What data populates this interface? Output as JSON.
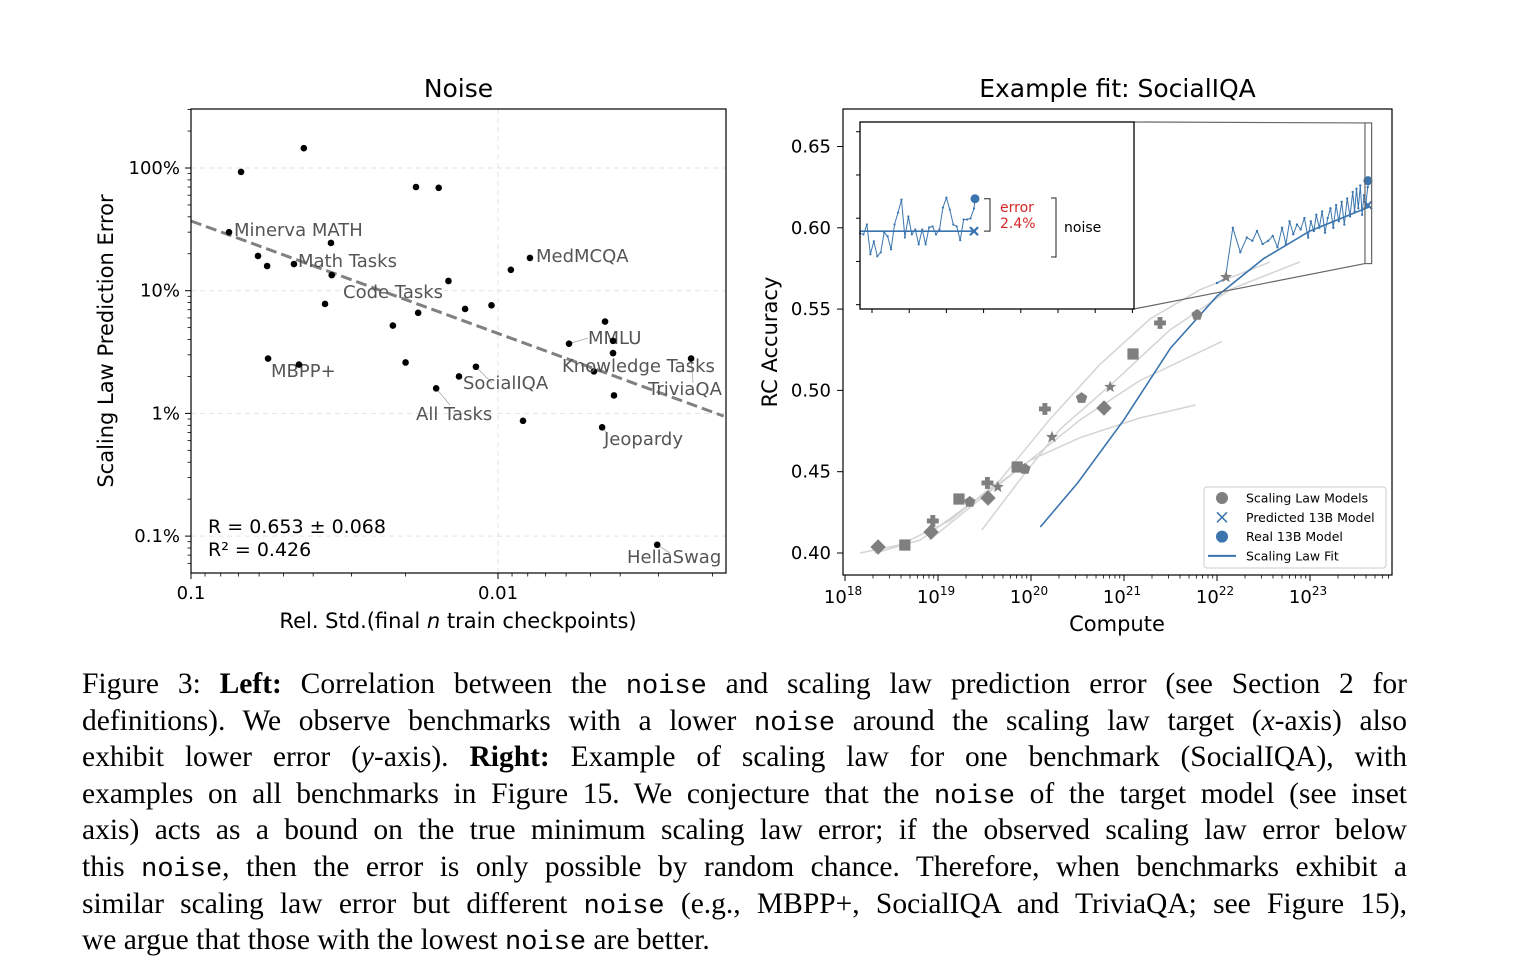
{
  "chart_data": [
    {
      "type": "scatter",
      "title": "Noise",
      "xlabel": {
        "prefix": "Rel. Std.(final ",
        "var": "n",
        "suffix": " train checkpoints)"
      },
      "ylabel": "Scaling Law Prediction Error",
      "x_scale": "log",
      "x_reversed": true,
      "xlim": [
        0.1,
        0.00184
      ],
      "y_scale": "log",
      "y_unit": "percent",
      "ylim": [
        0.05,
        300
      ],
      "grid": true,
      "xticks": [
        {
          "value": 0.1,
          "label": "0.1"
        },
        {
          "value": 0.01,
          "label": "0.01"
        }
      ],
      "yticks": [
        {
          "value": 100,
          "label": "100%"
        },
        {
          "value": 10,
          "label": "10%"
        },
        {
          "value": 1,
          "label": "1%"
        },
        {
          "value": 0.1,
          "label": "0.1%"
        }
      ],
      "points": [
        {
          "x": 0.0429,
          "y": 145
        },
        {
          "x": 0.0687,
          "y": 93
        },
        {
          "x": 0.0185,
          "y": 70
        },
        {
          "x": 0.0156,
          "y": 69
        },
        {
          "x": 0.0752,
          "y": 30,
          "label": "Minerva MATH"
        },
        {
          "x": 0.035,
          "y": 24.5
        },
        {
          "x": 0.0605,
          "y": 19.2
        },
        {
          "x": 0.0565,
          "y": 15.9
        },
        {
          "x": 0.0462,
          "y": 16.5,
          "label": "Math Tasks"
        },
        {
          "x": 0.0348,
          "y": 13.4,
          "label": "Code Tasks"
        },
        {
          "x": 0.0145,
          "y": 12.0
        },
        {
          "x": 0.00908,
          "y": 14.8
        },
        {
          "x": 0.00787,
          "y": 18.5,
          "label": "MedMCQA"
        },
        {
          "x": 0.0366,
          "y": 7.8
        },
        {
          "x": 0.0128,
          "y": 7.1
        },
        {
          "x": 0.0105,
          "y": 7.6
        },
        {
          "x": 0.022,
          "y": 5.2
        },
        {
          "x": 0.0182,
          "y": 6.6
        },
        {
          "x": 0.00448,
          "y": 5.6
        },
        {
          "x": 0.00587,
          "y": 3.7,
          "label": "MMLU"
        },
        {
          "x": 0.00422,
          "y": 3.9
        },
        {
          "x": 0.00422,
          "y": 3.1
        },
        {
          "x": 0.00235,
          "y": 2.8,
          "label": "TriviaQA"
        },
        {
          "x": 0.00487,
          "y": 2.2,
          "label": "Knowledge Tasks"
        },
        {
          "x": 0.00419,
          "y": 1.4
        },
        {
          "x": 0.0561,
          "y": 2.8,
          "label": "MBPP+"
        },
        {
          "x": 0.0445,
          "y": 2.5
        },
        {
          "x": 0.02,
          "y": 2.6
        },
        {
          "x": 0.0118,
          "y": 2.4,
          "label": "SocialIQA"
        },
        {
          "x": 0.0134,
          "y": 2.0
        },
        {
          "x": 0.0159,
          "y": 1.6,
          "label": "All Tasks"
        },
        {
          "x": 0.00829,
          "y": 0.87
        },
        {
          "x": 0.00458,
          "y": 0.77,
          "label": "Jeopardy"
        },
        {
          "x": 0.00303,
          "y": 0.085,
          "label": "HellaSwag"
        }
      ],
      "trend": {
        "style": "dashed",
        "x": [
          0.1,
          0.00184
        ],
        "y": [
          37,
          0.95
        ]
      },
      "stats": [
        "R = 0.653 ± 0.068",
        "R² = 0.426"
      ],
      "colors": {
        "points": "#000000",
        "trend": "#808080",
        "labels": "#555555",
        "grid": "#e3e3e3"
      }
    },
    {
      "type": "line",
      "title": "Example fit: SocialIQA",
      "xlabel": "Compute",
      "ylabel": "RC Accuracy",
      "x_scale": "log",
      "xlim": [
        9.5e+17,
        7.6e+23
      ],
      "ylim": [
        0.3865,
        0.673
      ],
      "xticks": [
        {
          "base": "10",
          "exp": "18"
        },
        {
          "base": "10",
          "exp": "19"
        },
        {
          "base": "10",
          "exp": "20"
        },
        {
          "base": "10",
          "exp": "21"
        },
        {
          "base": "10",
          "exp": "22"
        },
        {
          "base": "10",
          "exp": "23"
        }
      ],
      "yticks": [
        {
          "value": 0.4,
          "label": "0.40"
        },
        {
          "value": 0.45,
          "label": "0.45"
        },
        {
          "value": 0.5,
          "label": "0.50"
        },
        {
          "value": 0.55,
          "label": "0.55"
        },
        {
          "value": 0.6,
          "label": "0.60"
        },
        {
          "value": 0.65,
          "label": "0.65"
        }
      ],
      "scaling_law_models": [
        {
          "compute": 2.27e+18,
          "acc": 0.4037,
          "marker": "diamond"
        },
        {
          "compute": 4.4e+18,
          "acc": 0.4049,
          "marker": "square"
        },
        {
          "compute": 8.8e+18,
          "acc": 0.4197,
          "marker": "plus"
        },
        {
          "compute": 8.4e+18,
          "acc": 0.4129,
          "marker": "diamond"
        },
        {
          "compute": 1.68e+19,
          "acc": 0.4332,
          "marker": "square"
        },
        {
          "compute": 2.2e+19,
          "acc": 0.4314,
          "marker": "pentagon"
        },
        {
          "compute": 3.4e+19,
          "acc": 0.4431,
          "marker": "plus"
        },
        {
          "compute": 4.4e+19,
          "acc": 0.4406,
          "marker": "star"
        },
        {
          "compute": 3.45e+19,
          "acc": 0.4338,
          "marker": "diamond"
        },
        {
          "compute": 7.1e+19,
          "acc": 0.4529,
          "marker": "square"
        },
        {
          "compute": 8.6e+19,
          "acc": 0.4517,
          "marker": "pentagon"
        },
        {
          "compute": 1.41e+20,
          "acc": 0.4886,
          "marker": "plus"
        },
        {
          "compute": 1.68e+20,
          "acc": 0.4713,
          "marker": "star"
        },
        {
          "compute": 3.5e+20,
          "acc": 0.4953,
          "marker": "pentagon"
        },
        {
          "compute": 7.1e+20,
          "acc": 0.5021,
          "marker": "star"
        },
        {
          "compute": 6.1e+20,
          "acc": 0.4892,
          "marker": "diamond"
        },
        {
          "compute": 1.25e+21,
          "acc": 0.5224,
          "marker": "square"
        },
        {
          "compute": 2.44e+21,
          "acc": 0.5415,
          "marker": "plus"
        },
        {
          "compute": 6.1e+21,
          "acc": 0.5464,
          "marker": "pentagon"
        },
        {
          "compute": 1.25e+22,
          "acc": 0.5697,
          "marker": "star"
        }
      ],
      "model_fit_curves": [
        [
          [
            1.45e+18,
            0.4
          ],
          [
            3.89e+18,
            0.405
          ],
          [
            1.35e+19,
            0.42
          ],
          [
            4.68e+19,
            0.445
          ],
          [
            1.58e+20,
            0.482
          ],
          [
            5.5e+20,
            0.516
          ],
          [
            1.91e+21,
            0.544
          ],
          [
            6.61e+21,
            0.562
          ],
          [
            3.72e+22,
            0.579
          ]
        ],
        [
          [
            2.09e+18,
            0.4
          ],
          [
            6.46e+18,
            0.408
          ],
          [
            2.19e+19,
            0.43
          ],
          [
            7.59e+19,
            0.452
          ],
          [
            3.39e+20,
            0.482
          ],
          [
            1.48e+21,
            0.506
          ],
          [
            1.12e+22,
            0.53
          ]
        ],
        [
          [
            8.13e+18,
            0.408
          ],
          [
            2.82e+19,
            0.433
          ],
          [
            9.77e+19,
            0.457
          ],
          [
            3.39e+20,
            0.471
          ],
          [
            1.48e+21,
            0.483
          ],
          [
            5.89e+21,
            0.491
          ]
        ],
        [
          [
            2.95e+19,
            0.414
          ],
          [
            7.59e+19,
            0.445
          ],
          [
            2.04e+20,
            0.476
          ],
          [
            7.08e+20,
            0.503
          ],
          [
            3.09e+21,
            0.537
          ],
          [
            1.38e+22,
            0.562
          ],
          [
            7.76e+22,
            0.579
          ]
        ]
      ],
      "target_series": [
        [
          1e+22,
          0.566
        ],
        [
          1.23e+22,
          0.569
        ],
        [
          1.48e+22,
          0.6
        ],
        [
          1.78e+22,
          0.585
        ],
        [
          2.09e+22,
          0.594
        ],
        [
          2.4e+22,
          0.592
        ],
        [
          2.69e+22,
          0.598
        ],
        [
          3.09e+22,
          0.59
        ],
        [
          3.55e+22,
          0.592
        ],
        [
          3.98e+22,
          0.595
        ],
        [
          4.47e+22,
          0.588
        ],
        [
          5.01e+22,
          0.6
        ],
        [
          5.5e+22,
          0.59
        ],
        [
          6.03e+22,
          0.604
        ],
        [
          6.61e+22,
          0.596
        ],
        [
          7.24e+22,
          0.602
        ],
        [
          7.94e+22,
          0.599
        ],
        [
          8.71e+22,
          0.606
        ],
        [
          9.55e+22,
          0.594
        ],
        [
          1.02e+23,
          0.604
        ],
        [
          1.1e+23,
          0.598
        ],
        [
          1.17e+23,
          0.608
        ],
        [
          1.26e+23,
          0.6
        ],
        [
          1.35e+23,
          0.61
        ],
        [
          1.45e+23,
          0.597
        ],
        [
          1.55e+23,
          0.606
        ],
        [
          1.66e+23,
          0.612
        ],
        [
          1.78e+23,
          0.6
        ],
        [
          1.91e+23,
          0.614
        ],
        [
          2.04e+23,
          0.604
        ],
        [
          2.19e+23,
          0.616
        ],
        [
          2.34e+23,
          0.602
        ],
        [
          2.51e+23,
          0.618
        ],
        [
          2.69e+23,
          0.607
        ],
        [
          2.88e+23,
          0.622
        ],
        [
          3.02e+23,
          0.61
        ],
        [
          3.16e+23,
          0.624
        ],
        [
          3.31e+23,
          0.612
        ],
        [
          3.47e+23,
          0.626
        ],
        [
          3.63e+23,
          0.608
        ],
        [
          3.8e+23,
          0.62
        ],
        [
          3.98e+23,
          0.614
        ],
        [
          4.17e+23,
          0.625
        ],
        [
          4.37e+23,
          0.629
        ]
      ],
      "scaling_law_fit": [
        [
          1.26e+20,
          0.416
        ],
        [
          3.16e+20,
          0.443
        ],
        [
          1e+21,
          0.482
        ],
        [
          3.16e+21,
          0.526
        ],
        [
          1e+22,
          0.558
        ],
        [
          3.16e+22,
          0.581
        ],
        [
          1e+23,
          0.598
        ],
        [
          4.37e+23,
          0.613
        ]
      ],
      "predicted_13b": {
        "compute": 4.2e+23,
        "acc": 0.614
      },
      "real_13b": {
        "compute": 4.2e+23,
        "acc": 0.629
      },
      "legend": {
        "position": "lower-right",
        "entries": [
          {
            "label": "Scaling Law Models",
            "icon": "gray-circle"
          },
          {
            "label": "Predicted 13B Model",
            "icon": "blue-x"
          },
          {
            "label": "Real 13B Model",
            "icon": "blue-circle"
          },
          {
            "label": "Scaling Law Fit",
            "icon": "blue-line"
          }
        ]
      },
      "inset": {
        "xlim": [
          3.9e+23,
          4.6e+23
        ],
        "ylim": [
          0.578,
          0.6645
        ],
        "yticks": [
          0.58,
          0.6,
          0.62,
          0.64,
          0.66
        ],
        "series_acc": [
          0.613,
          0.6125,
          0.6171,
          0.6033,
          0.6093,
          0.6024,
          0.6042,
          0.6134,
          0.6116,
          0.6056,
          0.6171,
          0.6226,
          0.6286,
          0.6111,
          0.6208,
          0.6125,
          0.6148,
          0.6079,
          0.6148,
          0.6079,
          0.6157,
          0.6162,
          0.6125,
          0.6148,
          0.6249,
          0.6295,
          0.624,
          0.6171,
          0.6162,
          0.6098,
          0.6194,
          0.6194,
          0.6199,
          0.6245
        ],
        "predicted_acc": 0.614,
        "real_acc": 0.629,
        "error_label": "error",
        "error_value": "2.4%",
        "noise_label": "noise"
      },
      "colors": {
        "blue": "#3b75af",
        "gray_marker": "#7f7f7f",
        "gray_curve": "#d4d4d4",
        "error": "#d62728"
      }
    }
  ],
  "caption": {
    "lines": [
      [
        {
          "t": "Figure 3: "
        },
        {
          "t": "Left:",
          "s": "b"
        },
        {
          "t": " Correlation between the "
        },
        {
          "t": "noise",
          "s": "code"
        },
        {
          "t": " and scaling law prediction error (see Section 2 for"
        }
      ],
      [
        {
          "t": "definitions). We observe benchmarks with a lower "
        },
        {
          "t": "noise",
          "s": "code"
        },
        {
          "t": " around the scaling law target ("
        },
        {
          "t": "x",
          "s": "i"
        },
        {
          "t": "-axis) also"
        }
      ],
      [
        {
          "t": "exhibit lower error ("
        },
        {
          "t": "y",
          "s": "i"
        },
        {
          "t": "-axis). "
        },
        {
          "t": "Right:",
          "s": "b"
        },
        {
          "t": " Example of scaling law for one benchmark (SocialIQA), with"
        }
      ],
      [
        {
          "t": "examples on all benchmarks in Figure 15. We conjecture that the "
        },
        {
          "t": "noise",
          "s": "code"
        },
        {
          "t": " of the target model (see inset"
        }
      ],
      [
        {
          "t": "axis) acts as a bound on the true minimum scaling law error; if the observed scaling law error below"
        }
      ],
      [
        {
          "t": "this "
        },
        {
          "t": "noise",
          "s": "code"
        },
        {
          "t": ", then the error is only possible by random chance. Therefore, when benchmarks exhibit a"
        }
      ],
      [
        {
          "t": "similar scaling law error but different "
        },
        {
          "t": "noise",
          "s": "code"
        },
        {
          "t": " (e.g., MBPP+, SocialIQA and TriviaQA; see Figure 15),"
        }
      ],
      [
        {
          "t": "we argue that those with the lowest "
        },
        {
          "t": "noise",
          "s": "code"
        },
        {
          "t": " are better."
        }
      ]
    ]
  }
}
